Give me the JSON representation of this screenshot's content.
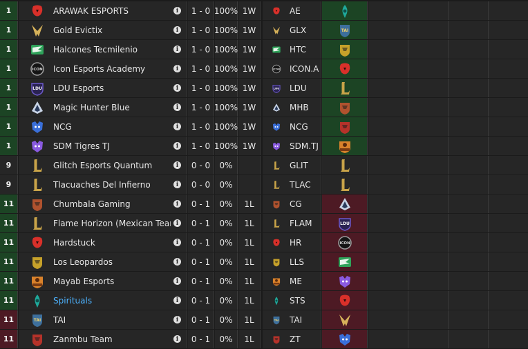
{
  "standings": {
    "rows": [
      {
        "rank": "1",
        "rank_status": "green",
        "team": "ARAWAK ESPORTS",
        "abbr": "AE",
        "record": "1 - 0",
        "pct": "100%",
        "streak": "1W",
        "logo": "arawak-logo-icon",
        "logo_color": "#d9302a",
        "opp_logo": "spirituals-logo-icon",
        "opp_color": "#1fa89a",
        "opp_status": "green"
      },
      {
        "rank": "1",
        "rank_status": "green",
        "team": "Gold Evictix",
        "abbr": "GLX",
        "record": "1 - 0",
        "pct": "100%",
        "streak": "1W",
        "logo": "gold-evictix-logo-icon",
        "logo_color": "#d6b25a",
        "opp_logo": "tai-logo-icon",
        "opp_color": "#3d6f9c",
        "opp_status": "green"
      },
      {
        "rank": "1",
        "rank_status": "green",
        "team": "Halcones Tecmilenio",
        "abbr": "HTC",
        "record": "1 - 0",
        "pct": "100%",
        "streak": "1W",
        "logo": "halcones-logo-icon",
        "logo_color": "#2fa35a",
        "opp_logo": "leopardos-logo-icon",
        "opp_color": "#c6a12a",
        "opp_status": "green"
      },
      {
        "rank": "1",
        "rank_status": "green",
        "team": "Icon Esports Academy",
        "abbr": "ICON.A",
        "record": "1 - 0",
        "pct": "100%",
        "streak": "1W",
        "logo": "icon-esports-logo-icon",
        "logo_color": "#9a9a9a",
        "opp_logo": "hardstuck-logo-icon",
        "opp_color": "#d9302a",
        "opp_status": "green"
      },
      {
        "rank": "1",
        "rank_status": "green",
        "team": "LDU Esports",
        "abbr": "LDU",
        "record": "1 - 0",
        "pct": "100%",
        "streak": "1W",
        "logo": "ldu-logo-icon",
        "logo_color": "#6b58c9",
        "opp_logo": "lol-placeholder-logo-icon",
        "opp_color": "#c9a449",
        "opp_status": "green"
      },
      {
        "rank": "1",
        "rank_status": "green",
        "team": "Magic Hunter Blue",
        "abbr": "MHB",
        "record": "1 - 0",
        "pct": "100%",
        "streak": "1W",
        "logo": "magic-hunter-logo-icon",
        "logo_color": "#c8d4e6",
        "opp_logo": "chumbala-logo-icon",
        "opp_color": "#b0522e",
        "opp_status": "green"
      },
      {
        "rank": "1",
        "rank_status": "green",
        "team": "NCG",
        "abbr": "NCG",
        "record": "1 - 0",
        "pct": "100%",
        "streak": "1W",
        "logo": "ncg-logo-icon",
        "logo_color": "#3a6fd9",
        "opp_logo": "zanmbu-logo-icon",
        "opp_color": "#b5322a",
        "opp_status": "green"
      },
      {
        "rank": "1",
        "rank_status": "green",
        "team": "SDM Tigres TJ",
        "abbr": "SDM.TJ",
        "record": "1 - 0",
        "pct": "100%",
        "streak": "1W",
        "logo": "sdm-tigres-logo-icon",
        "logo_color": "#8a5ae0",
        "opp_logo": "mayab-logo-icon",
        "opp_color": "#d9822b",
        "opp_status": "green"
      },
      {
        "rank": "9",
        "rank_status": "",
        "team": "Glitch Esports Quantum",
        "abbr": "GLIT",
        "record": "0 - 0",
        "pct": "0%",
        "streak": "",
        "logo": "lol-placeholder-logo-icon",
        "logo_color": "#c9a449",
        "opp_logo": "lol-placeholder-logo-icon",
        "opp_color": "#c9a449",
        "opp_status": ""
      },
      {
        "rank": "9",
        "rank_status": "",
        "team": "Tlacuaches Del Infierno",
        "abbr": "TLAC",
        "record": "0 - 0",
        "pct": "0%",
        "streak": "",
        "logo": "lol-placeholder-logo-icon",
        "logo_color": "#c9a449",
        "opp_logo": "lol-placeholder-logo-icon",
        "opp_color": "#c9a449",
        "opp_status": ""
      },
      {
        "rank": "11",
        "rank_status": "green",
        "team": "Chumbala Gaming",
        "abbr": "CG",
        "record": "0 - 1",
        "pct": "0%",
        "streak": "1L",
        "logo": "chumbala-logo-icon",
        "logo_color": "#b0522e",
        "opp_logo": "magic-hunter-logo-icon",
        "opp_color": "#c8d4e6",
        "opp_status": "red"
      },
      {
        "rank": "11",
        "rank_status": "green",
        "team": "Flame Horizon (Mexican Team)",
        "abbr": "FLAM",
        "record": "0 - 1",
        "pct": "0%",
        "streak": "1L",
        "logo": "lol-placeholder-logo-icon",
        "logo_color": "#c9a449",
        "opp_logo": "ldu-logo-icon",
        "opp_color": "#6b58c9",
        "opp_status": "red"
      },
      {
        "rank": "11",
        "rank_status": "green",
        "team": "Hardstuck",
        "abbr": "HR",
        "record": "0 - 1",
        "pct": "0%",
        "streak": "1L",
        "logo": "hardstuck-logo-icon",
        "logo_color": "#d9302a",
        "opp_logo": "icon-esports-logo-icon",
        "opp_color": "#9a9a9a",
        "opp_status": "red"
      },
      {
        "rank": "11",
        "rank_status": "green",
        "team": "Los Leopardos",
        "abbr": "LLS",
        "record": "0 - 1",
        "pct": "0%",
        "streak": "1L",
        "logo": "leopardos-logo-icon",
        "logo_color": "#c6a12a",
        "opp_logo": "halcones-logo-icon",
        "opp_color": "#2fa35a",
        "opp_status": "red"
      },
      {
        "rank": "11",
        "rank_status": "green",
        "team": "Mayab Esports",
        "abbr": "ME",
        "record": "0 - 1",
        "pct": "0%",
        "streak": "1L",
        "logo": "mayab-logo-icon",
        "logo_color": "#d9822b",
        "opp_logo": "sdm-tigres-logo-icon",
        "opp_color": "#8a5ae0",
        "opp_status": "red"
      },
      {
        "rank": "11",
        "rank_status": "green",
        "team": "Spirituals",
        "abbr": "STS",
        "record": "0 - 1",
        "pct": "0%",
        "streak": "1L",
        "logo": "spirituals-logo-icon",
        "logo_color": "#1fa89a",
        "opp_logo": "arawak-logo-icon",
        "opp_color": "#d9302a",
        "opp_status": "red",
        "link": true
      },
      {
        "rank": "11",
        "rank_status": "red",
        "team": "TAI",
        "abbr": "TAI",
        "record": "0 - 1",
        "pct": "0%",
        "streak": "1L",
        "logo": "tai-logo-icon",
        "logo_color": "#3d6f9c",
        "opp_logo": "gold-evictix-logo-icon",
        "opp_color": "#d6b25a",
        "opp_status": "red"
      },
      {
        "rank": "11",
        "rank_status": "red",
        "team": "Zanmbu Team",
        "abbr": "ZT",
        "record": "0 - 1",
        "pct": "0%",
        "streak": "1L",
        "logo": "zanmbu-logo-icon",
        "logo_color": "#b5322a",
        "opp_logo": "ncg-logo-icon",
        "opp_color": "#3a6fd9",
        "opp_status": "red"
      }
    ]
  },
  "info_glyph": "i"
}
